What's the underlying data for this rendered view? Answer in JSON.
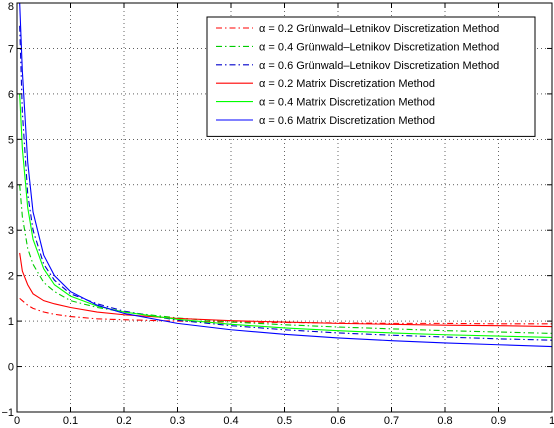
{
  "chart_data": {
    "type": "line",
    "title": "",
    "xlabel": "",
    "ylabel": "",
    "xlim": [
      0,
      1
    ],
    "ylim": [
      -1,
      8
    ],
    "xticks": [
      0,
      0.1,
      0.2,
      0.3,
      0.4,
      0.5,
      0.6,
      0.7,
      0.8,
      0.9,
      1
    ],
    "xtick_labels": [
      "0",
      "0.1",
      "0.2",
      "0.3",
      "0.4",
      "0.5",
      "0.6",
      "0.7",
      "0.8",
      "0.9",
      "1"
    ],
    "yticks": [
      -1,
      0,
      1,
      2,
      3,
      4,
      5,
      6,
      7,
      8
    ],
    "ytick_labels": [
      "−1",
      "0",
      "1",
      "2",
      "3",
      "4",
      "5",
      "6",
      "7",
      "8"
    ],
    "grid": true,
    "legend_position": "top-right",
    "x": [
      0.005,
      0.01,
      0.02,
      0.03,
      0.05,
      0.07,
      0.1,
      0.15,
      0.2,
      0.3,
      0.4,
      0.5,
      0.6,
      0.7,
      0.8,
      0.9,
      1.0
    ],
    "series": [
      {
        "name": "α = 0.2 Grünwald–Letnikov Discretization Method",
        "color": "#ff0000",
        "dash": "dashdot",
        "values": [
          1.5,
          1.45,
          1.35,
          1.28,
          1.2,
          1.15,
          1.1,
          1.05,
          1.03,
          1.0,
          0.98,
          0.97,
          0.96,
          0.95,
          0.95,
          0.94,
          0.94
        ]
      },
      {
        "name": "α = 0.4 Grünwald–Letnikov Discretization Method",
        "color": "#00cc00",
        "dash": "dashdot",
        "values": [
          4.0,
          3.3,
          2.6,
          2.25,
          1.85,
          1.65,
          1.45,
          1.3,
          1.2,
          1.07,
          0.98,
          0.92,
          0.87,
          0.83,
          0.79,
          0.76,
          0.73
        ]
      },
      {
        "name": "α = 0.6 Grünwald–Letnikov Discretization Method",
        "color": "#0000cc",
        "dash": "dashdot",
        "values": [
          7.5,
          5.6,
          3.8,
          3.0,
          2.25,
          1.9,
          1.6,
          1.38,
          1.22,
          1.02,
          0.9,
          0.81,
          0.74,
          0.69,
          0.65,
          0.61,
          0.58
        ]
      },
      {
        "name": "α = 0.2 Matrix Discretization Method",
        "color": "#ff0000",
        "dash": "solid",
        "values": [
          2.5,
          2.1,
          1.8,
          1.6,
          1.45,
          1.38,
          1.3,
          1.2,
          1.14,
          1.06,
          1.01,
          0.98,
          0.95,
          0.93,
          0.91,
          0.9,
          0.88
        ]
      },
      {
        "name": "α = 0.4 Matrix Discretization Method",
        "color": "#00ff00",
        "dash": "solid",
        "values": [
          6.0,
          4.8,
          3.5,
          2.8,
          2.15,
          1.8,
          1.55,
          1.33,
          1.2,
          1.04,
          0.93,
          0.85,
          0.79,
          0.74,
          0.7,
          0.67,
          0.64
        ]
      },
      {
        "name": "α = 0.6 Matrix Discretization Method",
        "color": "#0000ff",
        "dash": "solid",
        "values": [
          8.0,
          6.5,
          4.5,
          3.4,
          2.45,
          2.0,
          1.65,
          1.35,
          1.17,
          0.95,
          0.81,
          0.71,
          0.63,
          0.57,
          0.52,
          0.48,
          0.44
        ]
      }
    ]
  }
}
